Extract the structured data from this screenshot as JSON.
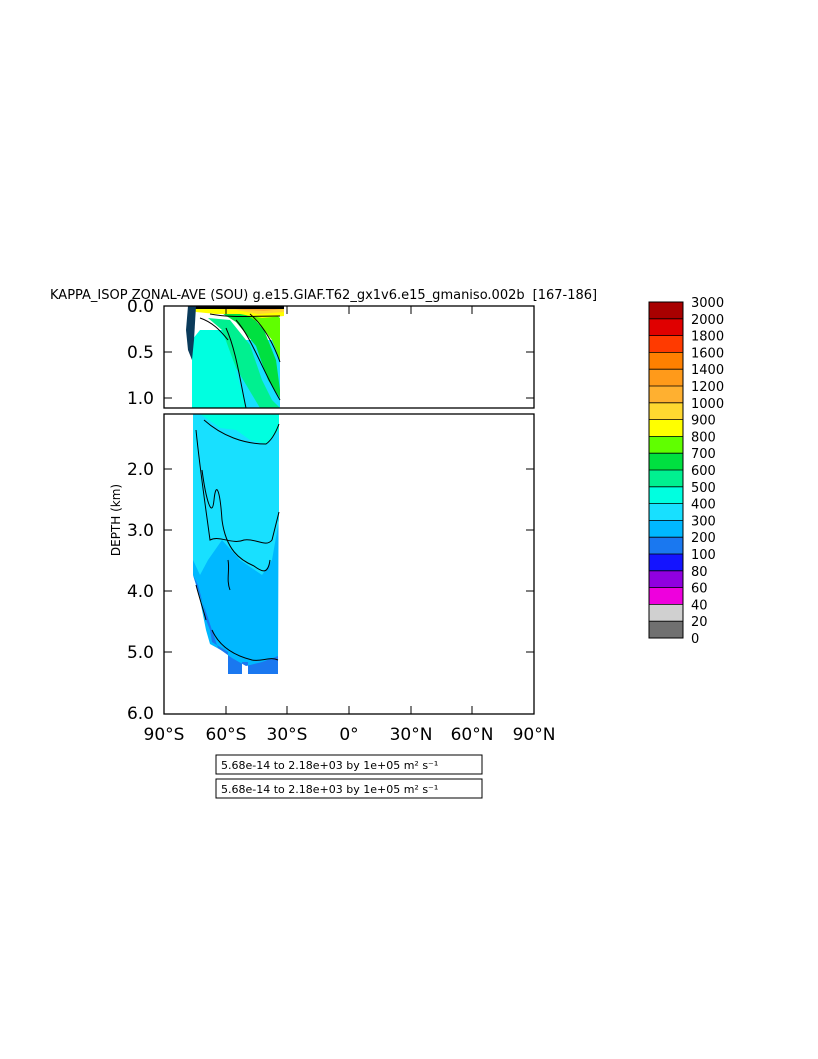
{
  "chart_data": {
    "type": "heatmap",
    "title": "KAPPA_ISOP ZONAL-AVE (SOU) g.e15.GIAF.T62_gx1v6.e15_gmaniso.002b",
    "year_range": "[167-186]",
    "ylabel": "DEPTH (km)",
    "xlim": [
      -90,
      90
    ],
    "ylim": [
      0,
      6
    ],
    "x_ticks": [
      "90°S",
      "60°S",
      "30°S",
      "0°",
      "30°N",
      "60°N",
      "90°N"
    ],
    "y_ticks_upper": [
      "0.0",
      "0.5",
      "1.0"
    ],
    "y_ticks_lower": [
      "2.0",
      "3.0",
      "4.0",
      "5.0",
      "6.0"
    ],
    "upper_panel_depth_range": [
      0,
      1.1
    ],
    "lower_panel_depth_range": [
      1.1,
      6.0
    ],
    "data_extent_lat": [
      -77,
      -34
    ],
    "levels": [
      {
        "label": "3000",
        "color": "#ffffff"
      },
      {
        "label": "2000",
        "color": "#a80000"
      },
      {
        "label": "1800",
        "color": "#e00000"
      },
      {
        "label": "1600",
        "color": "#ff3a00"
      },
      {
        "label": "1400",
        "color": "#ff8000"
      },
      {
        "label": "1200",
        "color": "#ff9a1a"
      },
      {
        "label": "1000",
        "color": "#ffb030"
      },
      {
        "label": "900",
        "color": "#ffd830"
      },
      {
        "label": "800",
        "color": "#ffff00"
      },
      {
        "label": "700",
        "color": "#60ff00"
      },
      {
        "label": "600",
        "color": "#00e040"
      },
      {
        "label": "500",
        "color": "#00f090"
      },
      {
        "label": "400",
        "color": "#00ffe0"
      },
      {
        "label": "300",
        "color": "#18e0ff"
      },
      {
        "label": "200",
        "color": "#00b8ff"
      },
      {
        "label": "100",
        "color": "#1a78f0"
      },
      {
        "label": "80",
        "color": "#1414ff"
      },
      {
        "label": "60",
        "color": "#9000e0"
      },
      {
        "label": "40",
        "color": "#ee00dd"
      },
      {
        "label": "20",
        "color": "#d0d0d0"
      },
      {
        "label": "0",
        "color": "#707070"
      }
    ],
    "range_note_1": "5.68e-14 to 2.18e+03 by 1e+05 m² s⁻¹",
    "range_note_2": "5.68e-14 to 2.18e+03 by 1e+05 m² s⁻¹"
  }
}
